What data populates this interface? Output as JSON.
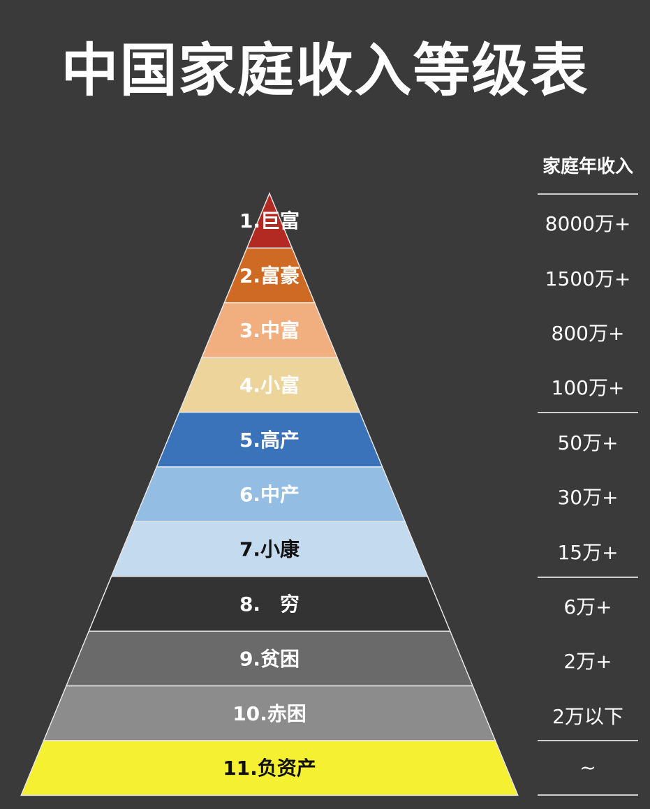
{
  "title": "中国家庭收入等级表",
  "column_header": "家庭年收入",
  "levels": [
    {
      "label": "1.巨富",
      "income": "8000万+",
      "color": "#b22a22",
      "text_color": "#ffffff"
    },
    {
      "label": "2.富豪",
      "income": "1500万+",
      "color": "#cf6a24",
      "text_color": "#ffffff"
    },
    {
      "label": "3.中富",
      "income": "800万+",
      "color": "#f1ae7f",
      "text_color": "#ffffff"
    },
    {
      "label": "4.小富",
      "income": "100万+",
      "color": "#ecd49b",
      "text_color": "#ffffff"
    },
    {
      "label": "5.高产",
      "income": "50万+",
      "color": "#3a73b9",
      "text_color": "#ffffff"
    },
    {
      "label": "6.中产",
      "income": "30万+",
      "color": "#94bde4",
      "text_color": "#ffffff"
    },
    {
      "label": "7.小康",
      "income": "15万+",
      "color": "#c4daef",
      "text_color": "#111111"
    },
    {
      "label": "8.　穷",
      "income": "6万+",
      "color": "#333333",
      "text_color": "#ffffff"
    },
    {
      "label": "9.贫困",
      "income": "2万+",
      "color": "#6a6a6a",
      "text_color": "#ffffff"
    },
    {
      "label": "10.赤困",
      "income": "2万以下",
      "color": "#8c8c8c",
      "text_color": "#ffffff"
    },
    {
      "label": "11.负资产",
      "income": "~",
      "color": "#f5f032",
      "text_color": "#111111"
    }
  ]
}
